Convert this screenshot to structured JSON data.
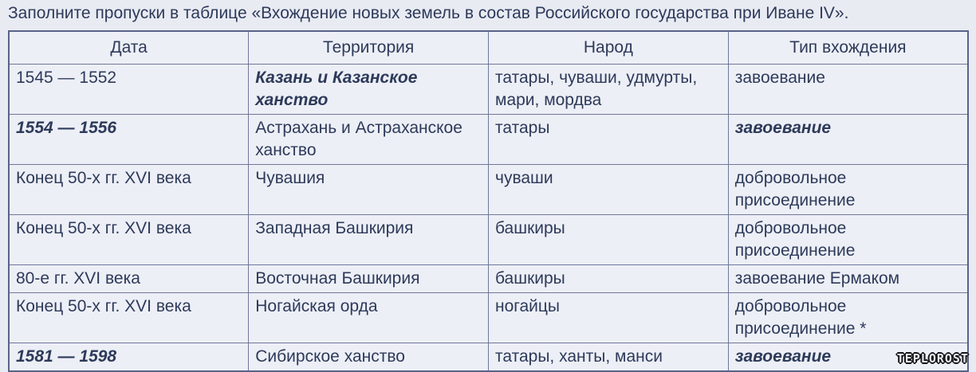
{
  "page": {
    "title": "Заполните пропуски в таблице «Вхождение новых земель в состав Российского государства при Иване IV».",
    "watermark": "TEPLOROST"
  },
  "colors": {
    "page_background": "#e9ebf3",
    "cell_background": "#edeff6",
    "outer_border": "#596388",
    "inner_border": "#6f7799",
    "text": "#2d3a5a"
  },
  "table": {
    "headers": [
      "Дата",
      "Территория",
      "Народ",
      "Тип вхождения"
    ],
    "rows": [
      {
        "cells": [
          {
            "text": "1545 — 1552",
            "filled": false
          },
          {
            "text": "Казань и Казанское ханство",
            "filled": true
          },
          {
            "text": "татары, чуваши, удмурты, мари, мордва",
            "filled": false
          },
          {
            "text": "завоевание",
            "filled": false
          }
        ]
      },
      {
        "cells": [
          {
            "text": "1554 — 1556",
            "filled": true
          },
          {
            "text": "Астрахань и Астраханское ханство",
            "filled": false
          },
          {
            "text": "татары",
            "filled": false
          },
          {
            "text": "завоевание",
            "filled": true
          }
        ]
      },
      {
        "cells": [
          {
            "text": "Конец 50-х гг. XVI века",
            "filled": false
          },
          {
            "text": "Чувашия",
            "filled": false
          },
          {
            "text": "чуваши",
            "filled": false
          },
          {
            "text": "добровольное присоединение",
            "filled": false
          }
        ]
      },
      {
        "cells": [
          {
            "text": "Конец 50-х гг. XVI века",
            "filled": false
          },
          {
            "text": "Западная Башкирия",
            "filled": false
          },
          {
            "text": "башкиры",
            "filled": false
          },
          {
            "text": "добровольное присоединение",
            "filled": false
          }
        ]
      },
      {
        "cells": [
          {
            "text": "80-е гг. XVI века",
            "filled": false
          },
          {
            "text": "Восточная Башкирия",
            "filled": false
          },
          {
            "text": "башкиры",
            "filled": false
          },
          {
            "text": "завоевание Ермаком",
            "filled": false
          }
        ]
      },
      {
        "cells": [
          {
            "text": "Конец 50-х гг. XVI века",
            "filled": false
          },
          {
            "text": "Ногайская орда",
            "filled": false
          },
          {
            "text": "ногайцы",
            "filled": false
          },
          {
            "text": "добровольное присоединение *",
            "filled": false
          }
        ]
      },
      {
        "cells": [
          {
            "text": "1581 — 1598",
            "filled": true
          },
          {
            "text": "Сибирское ханство",
            "filled": false
          },
          {
            "text": "татары, ханты, манси",
            "filled": false
          },
          {
            "text": "завоевание",
            "filled": true
          }
        ]
      }
    ]
  }
}
